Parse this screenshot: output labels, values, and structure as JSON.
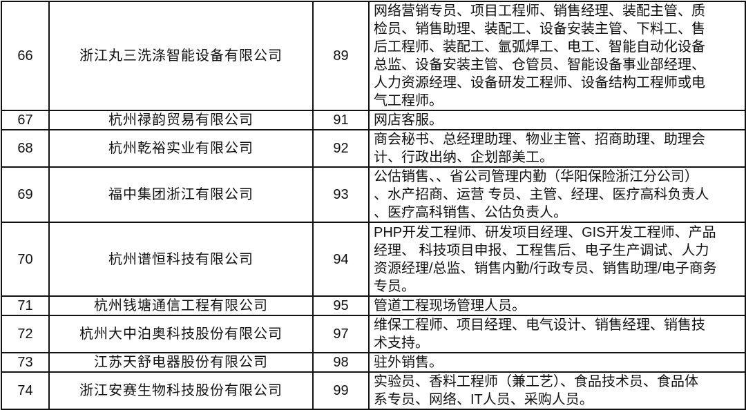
{
  "rows": [
    {
      "no": "66",
      "company": "浙江丸三洗涤智能设备有限公司",
      "count": "89",
      "jobs": "网络营销专员、项目工程师、销售经理、装配主管、质\n检员、销售助理、装配工、设备安装主管、下料工、售\n后工程师、装配工、氩弧焊工、电工、智能自动化设备\n总监、设备安装主管、仓管员、智能设备事业部经理、\n人力资源经理、设备研发工程师、设备结构工程师或电\n气工程师。"
    },
    {
      "no": "67",
      "company": "杭州禄韵贸易有限公司",
      "count": "91",
      "jobs": "网店客服。"
    },
    {
      "no": "68",
      "company": "杭州乾裕实业有限公司",
      "count": "92",
      "jobs": "商会秘书、总经理助理、物业主管、招商助理、助理会\n计、行政出纳、企划部美工。"
    },
    {
      "no": "69",
      "company": "福中集团浙江有限公司",
      "count": "93",
      "jobs": "公估销售、、省公司管理内勤（华阳保险浙江分公司）\n、水产招商、运营 专员、主管、经理、医疗高科负责人\n、医疗高科销售、公估负责人。"
    },
    {
      "no": "70",
      "company": "杭州谱恒科技有限公司",
      "count": "94",
      "jobs": "PHP开发工程师、研发项目经理、GIS开发工程师、产品\n经理、 科技项目申报、工程售后、电子生产调试、人力\n资源经理/总监、销售内勤/行政专员、销售助理/电子商务\n专员。"
    },
    {
      "no": "71",
      "company": "杭州钱塘通信工程有限公司",
      "count": "95",
      "jobs": "管道工程现场管理人员。"
    },
    {
      "no": "72",
      "company": "杭州大中泊奥科技股份有限公司",
      "count": "97",
      "jobs": "维保工程师、项目经理、电气设计、销售经理、销售技\n术支持。"
    },
    {
      "no": "73",
      "company": "江苏天舒电器股份有限公司",
      "count": "98",
      "jobs": "驻外销售。"
    },
    {
      "no": "74",
      "company": "浙江安赛生物科技股份有限公司",
      "count": "99",
      "jobs": "实验员、香料工程师（兼工艺）、食品技术员、食品体\n系专员、网络、IT人员、采购人员。"
    }
  ]
}
